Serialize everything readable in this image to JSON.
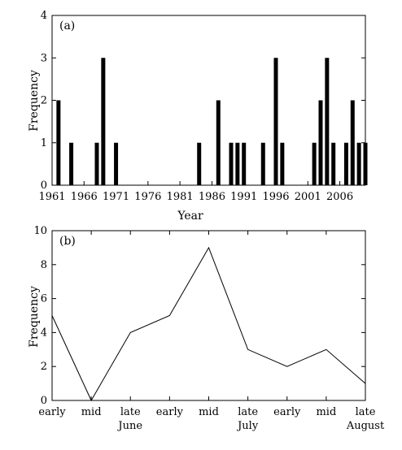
{
  "chart_data": [
    {
      "type": "bar",
      "panel_label": "(a)",
      "title": "",
      "xlabel": "Year",
      "ylabel": "Frequency",
      "xlim": [
        1961,
        2010
      ],
      "ylim": [
        0,
        4
      ],
      "y_ticks": [
        "0",
        "1",
        "2",
        "3",
        "4"
      ],
      "x_ticks": [
        "1961",
        "1966",
        "1971",
        "1976",
        "1981",
        "1986",
        "1991",
        "1996",
        "2001",
        "2006"
      ],
      "x_tick_values": [
        1961,
        1966,
        1971,
        1976,
        1981,
        1986,
        1991,
        1996,
        2001,
        2006
      ],
      "x": [
        1962,
        1964,
        1968,
        1969,
        1971,
        1984,
        1987,
        1989,
        1990,
        1991,
        1994,
        1996,
        1997,
        2002,
        2003,
        2004,
        2005,
        2007,
        2008,
        2009,
        2010
      ],
      "values": [
        2,
        1,
        1,
        3,
        1,
        1,
        2,
        1,
        1,
        1,
        1,
        3,
        1,
        1,
        2,
        3,
        1,
        1,
        2,
        1,
        1
      ],
      "grid": false,
      "legend": "none"
    },
    {
      "type": "line",
      "panel_label": "(b)",
      "title": "",
      "xlabel": "",
      "ylabel": "Frequency",
      "ylim": [
        0,
        10
      ],
      "y_ticks": [
        "0",
        "2",
        "4",
        "6",
        "8",
        "10"
      ],
      "categories": [
        "early",
        "mid",
        "late",
        "early",
        "mid",
        "late",
        "early",
        "mid",
        "late"
      ],
      "month_labels": [
        "June",
        "July",
        "August"
      ],
      "values": [
        5,
        0,
        4,
        5,
        9,
        3,
        2,
        3,
        1
      ],
      "grid": false,
      "legend": "none"
    }
  ]
}
